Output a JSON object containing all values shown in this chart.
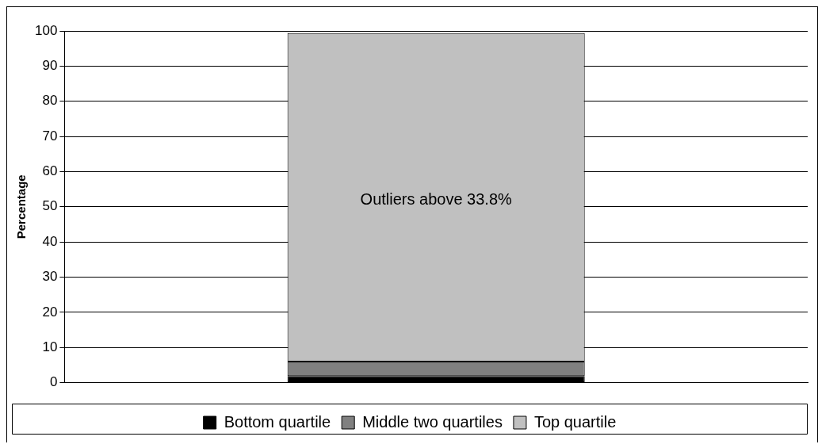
{
  "chart_data": {
    "type": "bar",
    "stacked": true,
    "ylabel": "Percentage",
    "categories": [
      null
    ],
    "series": [
      {
        "name": "Bottom quartile",
        "color": "#000000",
        "values": [
          1.9
        ]
      },
      {
        "name": "Middle two quartiles",
        "color": "#808080",
        "values": [
          4.1
        ]
      },
      {
        "name": "Top quartile",
        "color": "#c0c0c0",
        "values": [
          93.4
        ]
      }
    ],
    "ylim": [
      0,
      100
    ],
    "yticks": [
      0,
      10,
      20,
      30,
      40,
      50,
      60,
      70,
      80,
      90,
      100
    ],
    "grid": "y",
    "legend": "bottom",
    "annotations": [
      "Outliers above 33.8%"
    ]
  }
}
